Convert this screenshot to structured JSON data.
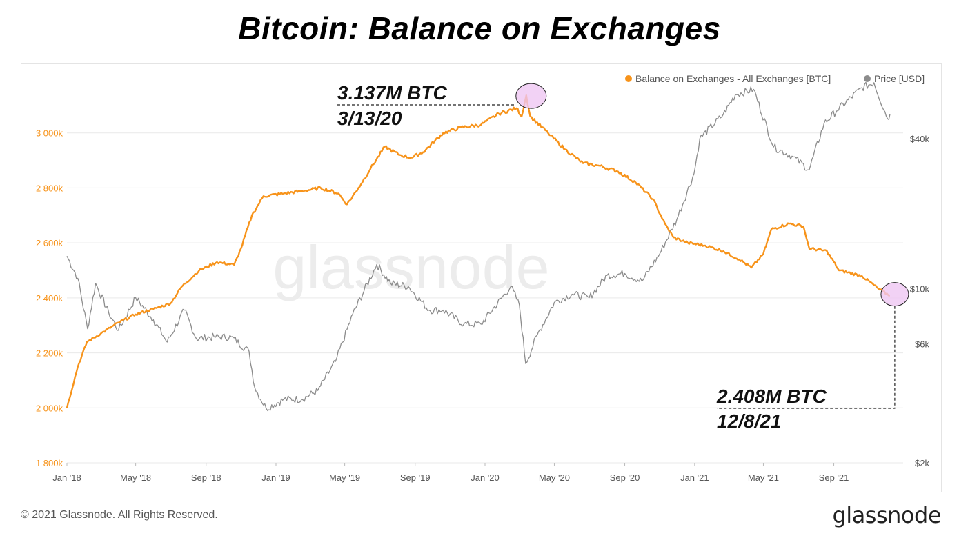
{
  "title": "Bitcoin: Balance on Exchanges",
  "footer": {
    "copyright": "© 2021 Glassnode. All Rights Reserved.",
    "logo": "glassnode"
  },
  "watermark": "glassnode",
  "annotations": [
    {
      "value": "3.137M BTC",
      "date": "3/13/20"
    },
    {
      "value": "2.408M BTC",
      "date": "12/8/21"
    }
  ],
  "colors": {
    "balance": "#f7931a",
    "price": "#8c8c8c",
    "highlight": "#efc7f2",
    "grid": "#e9e9e9"
  },
  "chart_data": {
    "type": "line",
    "legend": {
      "placement": "top-right",
      "items": [
        "Balance on Exchanges - All Exchanges [BTC]",
        "Price [USD]"
      ]
    },
    "x_ticks": [
      "Jan '18",
      "May '18",
      "Sep '18",
      "Jan '19",
      "May '19",
      "Sep '19",
      "Jan '20",
      "May '20",
      "Sep '20",
      "Jan '21",
      "May '21",
      "Sep '21"
    ],
    "y_left": {
      "ticks": [
        "1 800k",
        "2 000k",
        "2 200k",
        "2 400k",
        "2 600k",
        "2 800k",
        "3 000k"
      ],
      "range": [
        1800000,
        3200000
      ]
    },
    "y_right": {
      "scale": "log",
      "ticks": [
        "$2k",
        "$6k",
        "$10k",
        "$40k"
      ],
      "range": [
        2000,
        70000
      ]
    },
    "grid": true,
    "series": [
      {
        "name": "Balance on Exchanges - All Exchanges [BTC]",
        "axis": "left",
        "points": [
          [
            "2018-01-01",
            2000000
          ],
          [
            "2018-01-20",
            2150000
          ],
          [
            "2018-02-05",
            2240000
          ],
          [
            "2018-03-01",
            2270000
          ],
          [
            "2018-04-01",
            2310000
          ],
          [
            "2018-05-01",
            2340000
          ],
          [
            "2018-06-01",
            2360000
          ],
          [
            "2018-07-01",
            2380000
          ],
          [
            "2018-07-20",
            2440000
          ],
          [
            "2018-08-20",
            2500000
          ],
          [
            "2018-09-20",
            2530000
          ],
          [
            "2018-10-20",
            2520000
          ],
          [
            "2018-11-01",
            2580000
          ],
          [
            "2018-11-20",
            2700000
          ],
          [
            "2018-12-10",
            2770000
          ],
          [
            "2019-01-15",
            2780000
          ],
          [
            "2019-02-20",
            2790000
          ],
          [
            "2019-03-20",
            2800000
          ],
          [
            "2019-04-20",
            2780000
          ],
          [
            "2019-05-05",
            2740000
          ],
          [
            "2019-05-25",
            2800000
          ],
          [
            "2019-06-15",
            2870000
          ],
          [
            "2019-07-10",
            2950000
          ],
          [
            "2019-08-05",
            2920000
          ],
          [
            "2019-08-25",
            2910000
          ],
          [
            "2019-09-15",
            2930000
          ],
          [
            "2019-10-20",
            3000000
          ],
          [
            "2019-11-20",
            3020000
          ],
          [
            "2019-12-25",
            3030000
          ],
          [
            "2020-01-25",
            3070000
          ],
          [
            "2020-02-25",
            3090000
          ],
          [
            "2020-03-05",
            3060000
          ],
          [
            "2020-03-13",
            3137000
          ],
          [
            "2020-03-20",
            3060000
          ],
          [
            "2020-04-20",
            3000000
          ],
          [
            "2020-05-20",
            2940000
          ],
          [
            "2020-06-20",
            2890000
          ],
          [
            "2020-07-20",
            2880000
          ],
          [
            "2020-08-20",
            2860000
          ],
          [
            "2020-09-20",
            2820000
          ],
          [
            "2020-10-20",
            2760000
          ],
          [
            "2020-11-10",
            2670000
          ],
          [
            "2020-11-25",
            2620000
          ],
          [
            "2020-12-20",
            2600000
          ],
          [
            "2021-01-20",
            2590000
          ],
          [
            "2021-02-20",
            2570000
          ],
          [
            "2021-03-20",
            2540000
          ],
          [
            "2021-04-10",
            2510000
          ],
          [
            "2021-05-01",
            2560000
          ],
          [
            "2021-05-15",
            2650000
          ],
          [
            "2021-06-15",
            2670000
          ],
          [
            "2021-07-10",
            2660000
          ],
          [
            "2021-07-20",
            2580000
          ],
          [
            "2021-08-20",
            2570000
          ],
          [
            "2021-09-10",
            2500000
          ],
          [
            "2021-10-20",
            2480000
          ],
          [
            "2021-11-20",
            2430000
          ],
          [
            "2021-12-08",
            2408000
          ]
        ]
      },
      {
        "name": "Price [USD]",
        "axis": "right",
        "points": [
          [
            "2018-01-01",
            13500
          ],
          [
            "2018-01-20",
            11000
          ],
          [
            "2018-02-06",
            6900
          ],
          [
            "2018-02-20",
            10500
          ],
          [
            "2018-03-15",
            8000
          ],
          [
            "2018-04-01",
            6800
          ],
          [
            "2018-05-01",
            9200
          ],
          [
            "2018-06-01",
            7500
          ],
          [
            "2018-06-25",
            6100
          ],
          [
            "2018-07-25",
            8200
          ],
          [
            "2018-08-15",
            6300
          ],
          [
            "2018-09-15",
            6400
          ],
          [
            "2018-10-15",
            6400
          ],
          [
            "2018-11-15",
            5600
          ],
          [
            "2018-11-25",
            4000
          ],
          [
            "2018-12-15",
            3300
          ],
          [
            "2019-01-15",
            3600
          ],
          [
            "2019-02-15",
            3600
          ],
          [
            "2019-03-15",
            3900
          ],
          [
            "2019-04-15",
            5100
          ],
          [
            "2019-05-15",
            7900
          ],
          [
            "2019-06-26",
            12500
          ],
          [
            "2019-07-20",
            10500
          ],
          [
            "2019-08-20",
            10200
          ],
          [
            "2019-09-25",
            8200
          ],
          [
            "2019-10-20",
            8200
          ],
          [
            "2019-11-25",
            7200
          ],
          [
            "2019-12-25",
            7200
          ],
          [
            "2020-02-15",
            10200
          ],
          [
            "2020-03-01",
            8600
          ],
          [
            "2020-03-12",
            5000
          ],
          [
            "2020-04-01",
            6500
          ],
          [
            "2020-05-01",
            8800
          ],
          [
            "2020-06-01",
            9500
          ],
          [
            "2020-07-01",
            9200
          ],
          [
            "2020-08-01",
            11300
          ],
          [
            "2020-09-01",
            11500
          ],
          [
            "2020-10-01",
            10700
          ],
          [
            "2020-11-01",
            13800
          ],
          [
            "2020-12-01",
            19000
          ],
          [
            "2020-12-31",
            29000
          ],
          [
            "2021-01-10",
            40000
          ],
          [
            "2021-02-20",
            50000
          ],
          [
            "2021-03-13",
            60000
          ],
          [
            "2021-04-14",
            63000
          ],
          [
            "2021-05-19",
            37000
          ],
          [
            "2021-06-20",
            34000
          ],
          [
            "2021-07-20",
            30000
          ],
          [
            "2021-08-15",
            46000
          ],
          [
            "2021-09-07",
            52000
          ],
          [
            "2021-10-20",
            64000
          ],
          [
            "2021-11-10",
            67000
          ],
          [
            "2021-12-04",
            48000
          ],
          [
            "2021-12-08",
            50000
          ]
        ]
      }
    ]
  }
}
